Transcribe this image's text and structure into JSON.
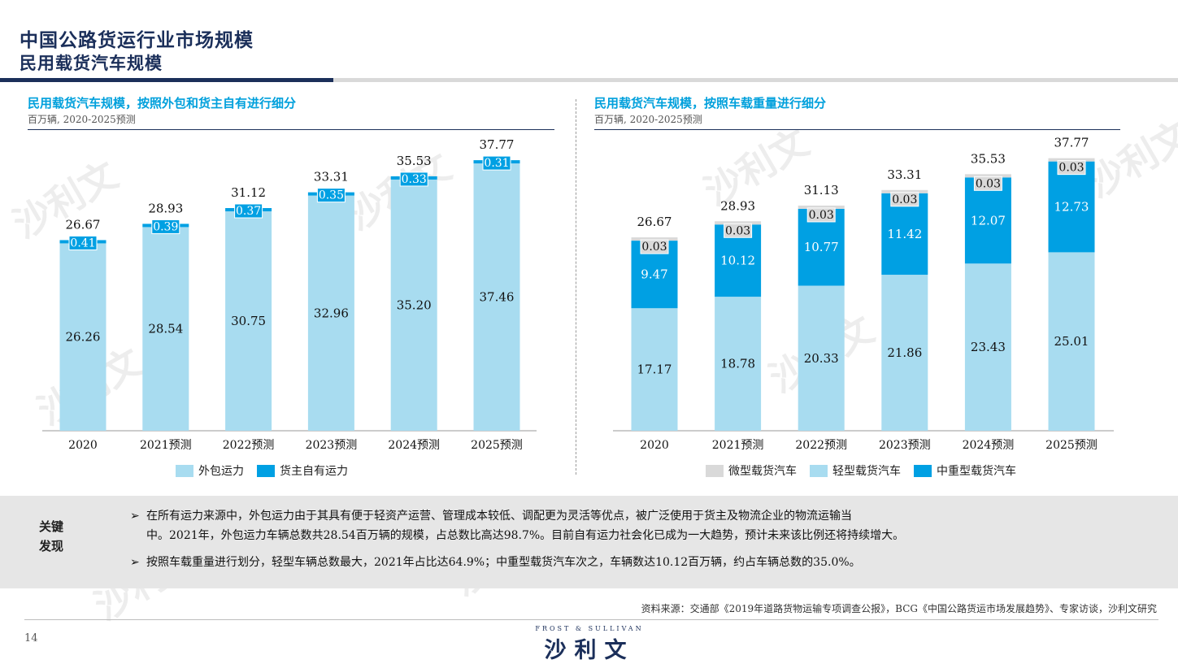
{
  "header": {
    "title": "中国公路货运行业市场规模",
    "subtitle": "民用载货汽车规模"
  },
  "left_chart": {
    "title": "民用载货汽车规模，按照外包和货主自有进行细分",
    "subtitle": "百万辆, 2020-2025预测"
  },
  "right_chart": {
    "title": "民用载货汽车规模，按照车载重量进行细分",
    "subtitle": "百万辆, 2020-2025预测"
  },
  "chart_data": [
    {
      "type": "bar",
      "stacked": true,
      "categories": [
        "2020",
        "2021预测",
        "2022预测",
        "2023预测",
        "2024预测",
        "2025预测"
      ],
      "series": [
        {
          "name": "外包运力",
          "values": [
            26.26,
            28.54,
            30.75,
            32.96,
            35.2,
            37.46
          ],
          "labels": [
            "26.26",
            "28.54",
            "30.75",
            "32.96",
            "35.20",
            "37.46"
          ],
          "color": "#a8dcf0"
        },
        {
          "name": "货主自有运力",
          "values": [
            0.41,
            0.39,
            0.37,
            0.35,
            0.33,
            0.31
          ],
          "labels": [
            "0.41",
            "0.39",
            "0.37",
            "0.35",
            "0.33",
            "0.31"
          ],
          "color": "#00a0e3"
        }
      ],
      "totals": [
        "26.67",
        "28.93",
        "31.12",
        "33.31",
        "35.53",
        "37.77"
      ],
      "legend": "bottom"
    },
    {
      "type": "bar",
      "stacked": true,
      "categories": [
        "2020",
        "2021预测",
        "2022预测",
        "2023预测",
        "2024预测",
        "2025预测"
      ],
      "series": [
        {
          "name": "轻型载货汽车",
          "values": [
            17.17,
            18.78,
            20.33,
            21.86,
            23.43,
            25.01
          ],
          "labels": [
            "17.17",
            "18.78",
            "20.33",
            "21.86",
            "23.43",
            "25.01"
          ],
          "color": "#a8dcf0"
        },
        {
          "name": "中重型载货汽车",
          "values": [
            9.47,
            10.12,
            10.77,
            11.42,
            12.07,
            12.73
          ],
          "labels": [
            "9.47",
            "10.12",
            "10.77",
            "11.42",
            "12.07",
            "12.73"
          ],
          "color": "#00a0e3"
        },
        {
          "name": "微型载货汽车",
          "values": [
            0.03,
            0.03,
            0.03,
            0.03,
            0.03,
            0.03
          ],
          "labels": [
            "0.03",
            "0.03",
            "0.03",
            "0.03",
            "0.03",
            "0.03"
          ],
          "color": "#d9d9d9"
        }
      ],
      "totals": [
        "26.67",
        "28.93",
        "31.13",
        "33.31",
        "35.53",
        "37.77"
      ],
      "legend": "bottom"
    }
  ],
  "legend_left": [
    "外包运力",
    "货主自有运力"
  ],
  "legend_right": [
    "微型载货汽车",
    "轻型载货汽车",
    "中重型载货汽车"
  ],
  "findings": {
    "label_line1": "关键",
    "label_line2": "发现",
    "bullet_icon": "arrow-right-icon",
    "item1_line1": "在所有运力来源中，外包运力由于其具有便于轻资产运营、管理成本较低、调配更为灵活等优点，被广泛使用于货主及物流企业的物流运输当",
    "item1_line2": "中。2021年，外包运力车辆总数共28.54百万辆的规模，占总数比高达98.7%。目前自有运力社会化已成为一大趋势，预计未来该比例还将持续增大。",
    "item2": "按照车载重量进行划分，轻型车辆总数最大，2021年占比达64.9%；中重型载货汽车次之，车辆数达10.12百万辆，约占车辆总数的35.0%。"
  },
  "footer": {
    "source": "资料来源：交通部《2019年道路货物运输专项调查公报》，BCG《中国公路货运市场发展趋势》、专家访谈，沙利文研究",
    "page": "14",
    "logo_en": "FROST & SULLIVAN",
    "logo_cn": "沙利文"
  },
  "watermark": {
    "text_cn": "沙利文",
    "text_en": "FROST & SULLIVAN"
  },
  "colors": {
    "navy": "#1b2f5a",
    "accent": "#00a0dc",
    "light_bar": "#a8dcf0",
    "dark_bar": "#00a0e3",
    "grey_bar": "#d9d9d9"
  }
}
